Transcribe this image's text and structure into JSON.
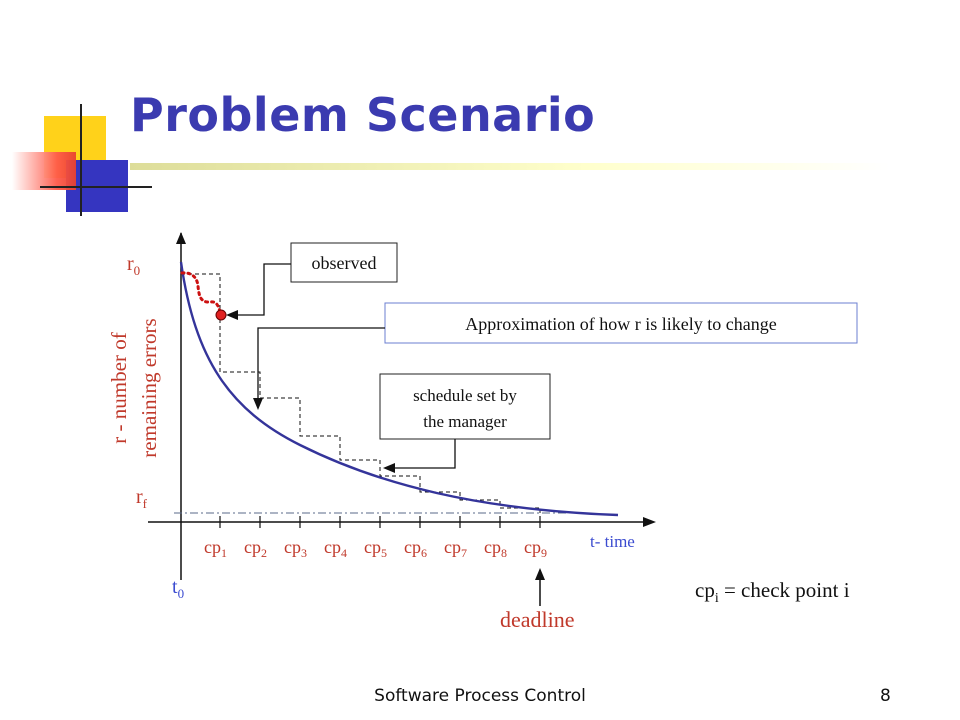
{
  "slide": {
    "title": "Problem Scenario",
    "footer": "Software Process Control",
    "page_number": "8"
  },
  "colors": {
    "title": "#3b3bb0",
    "curve": "#34349a",
    "axis_label_red": "#c0392b",
    "axis_label_blue": "#3b4bd0",
    "observed_dots": "#cc1111"
  },
  "diagram": {
    "y_axis_top_label": "r",
    "y_axis_top_sub": "0",
    "y_axis_bottom_label": "r",
    "y_axis_bottom_sub": "f",
    "y_axis_title_line1": "r - number of",
    "y_axis_title_line2": "remaining errors",
    "origin_label": "t",
    "origin_sub": "0",
    "x_axis_title": "t- time",
    "checkpoints": [
      {
        "base": "cp",
        "sub": "1"
      },
      {
        "base": "cp",
        "sub": "2"
      },
      {
        "base": "cp",
        "sub": "3"
      },
      {
        "base": "cp",
        "sub": "4"
      },
      {
        "base": "cp",
        "sub": "5"
      },
      {
        "base": "cp",
        "sub": "6"
      },
      {
        "base": "cp",
        "sub": "7"
      },
      {
        "base": "cp",
        "sub": "8"
      },
      {
        "base": "cp",
        "sub": "9"
      }
    ],
    "deadline_label": "deadline",
    "legend_base": "cp",
    "legend_sub": "i",
    "legend_rest": " = check point i",
    "callouts": {
      "observed": "observed",
      "approximation": "Approximation of how r is likely to change",
      "schedule_line1": "schedule set by",
      "schedule_line2": "the manager"
    }
  }
}
